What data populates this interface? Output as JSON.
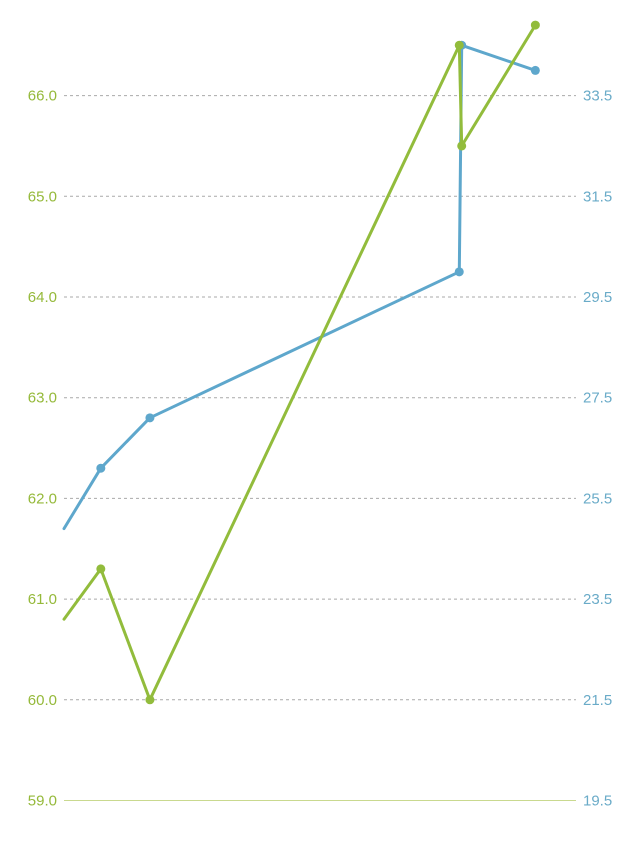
{
  "chart_data": {
    "type": "line",
    "title": "",
    "xlabel": "",
    "grid": true,
    "legend": "none",
    "axes": {
      "left": {
        "color": "#95b93a",
        "ticks": [
          "59.0",
          "60.0",
          "61.0",
          "62.0",
          "63.0",
          "64.0",
          "65.0",
          "66.0"
        ],
        "ylim": [
          59.0,
          66.7
        ]
      },
      "right": {
        "color": "#6aabc8",
        "ticks": [
          "19.5",
          "21.5",
          "23.5",
          "25.5",
          "27.5",
          "29.5",
          "31.5",
          "33.5"
        ],
        "ylim": [
          19.5,
          34.9
        ]
      }
    },
    "series": [
      {
        "axis": "right",
        "color": "#5ea7cc",
        "points": [
          {
            "x": 0.0,
            "y": 24.9
          },
          {
            "x": 0.75,
            "y": 26.1
          },
          {
            "x": 1.75,
            "y": 27.1
          },
          {
            "x": 8.05,
            "y": 30.0
          },
          {
            "x": 8.1,
            "y": 34.5
          },
          {
            "x": 9.6,
            "y": 34.0
          }
        ]
      },
      {
        "axis": "left",
        "color": "#92bc3c",
        "points": [
          {
            "x": 0.0,
            "y": 60.8
          },
          {
            "x": 0.75,
            "y": 61.3
          },
          {
            "x": 1.75,
            "y": 60.0
          },
          {
            "x": 8.05,
            "y": 66.5
          },
          {
            "x": 8.1,
            "y": 65.5
          },
          {
            "x": 9.6,
            "y": 66.7
          }
        ]
      }
    ]
  }
}
